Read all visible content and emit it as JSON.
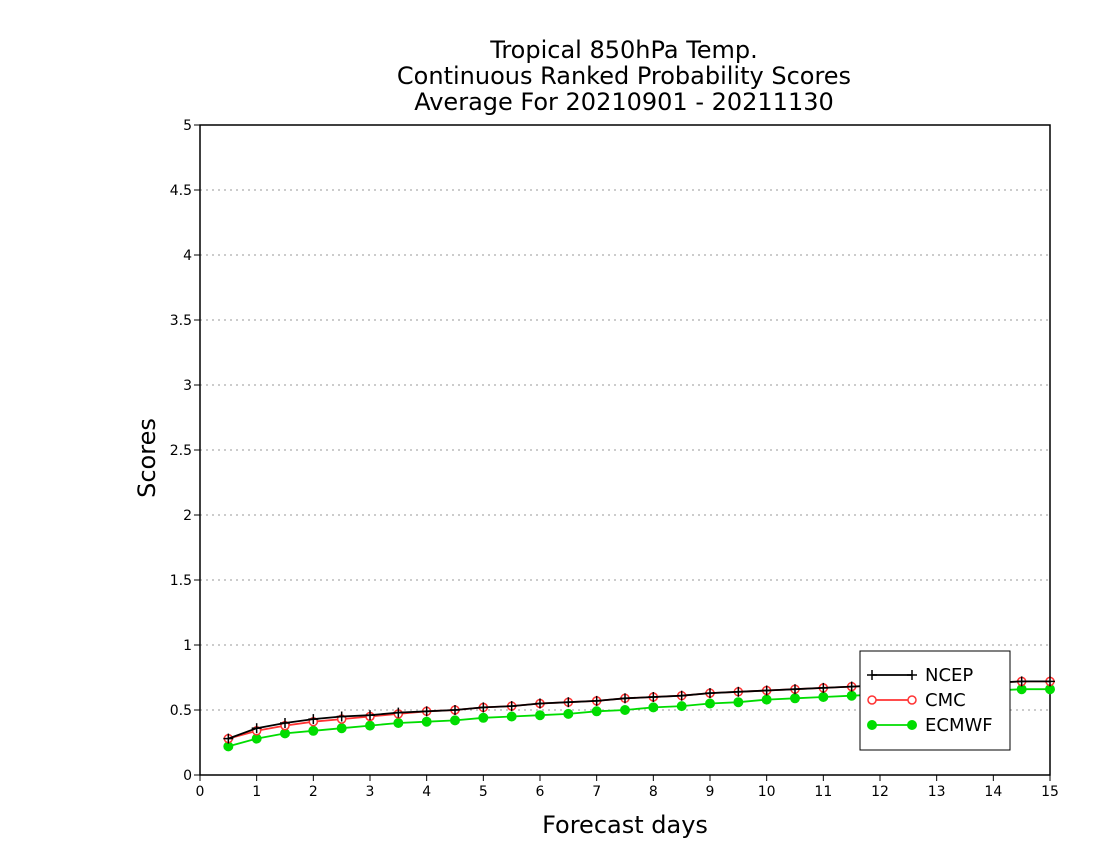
{
  "chart_data": {
    "type": "line",
    "title": [
      "Tropical 850hPa Temp.",
      "Continuous Ranked Probability Scores",
      "Average For 20210901 - 20211130"
    ],
    "xlabel": "Forecast days",
    "ylabel": "Scores",
    "xlim": [
      0,
      15
    ],
    "ylim": [
      0,
      5
    ],
    "x_ticks": [
      "0",
      "1",
      "2",
      "3",
      "4",
      "5",
      "6",
      "7",
      "8",
      "9",
      "10",
      "11",
      "12",
      "13",
      "14",
      "15"
    ],
    "y_ticks": [
      "0",
      "0.5",
      "1",
      "1.5",
      "2",
      "2.5",
      "3",
      "3.5",
      "4",
      "4.5",
      "5"
    ],
    "grid": "horizontal-dotted",
    "legend_position": "bottom-right",
    "x": [
      0.5,
      1,
      1.5,
      2,
      2.5,
      3,
      3.5,
      4,
      4.5,
      5,
      5.5,
      6,
      6.5,
      7,
      7.5,
      8,
      8.5,
      9,
      9.5,
      10,
      10.5,
      11,
      11.5,
      12,
      12.5,
      13,
      13.5,
      14,
      14.5,
      15
    ],
    "series": [
      {
        "name": "NCEP",
        "color": "#000000",
        "marker": "plus",
        "values": [
          0.28,
          0.36,
          0.4,
          0.43,
          0.45,
          0.46,
          0.48,
          0.49,
          0.5,
          0.52,
          0.53,
          0.55,
          0.56,
          0.57,
          0.59,
          0.6,
          0.61,
          0.63,
          0.64,
          0.65,
          0.66,
          0.67,
          0.68,
          0.69,
          0.7,
          0.7,
          0.71,
          0.71,
          0.72,
          0.72
        ]
      },
      {
        "name": "CMC",
        "color": "#ff3333",
        "marker": "open-circle",
        "values": [
          0.28,
          0.34,
          0.38,
          0.41,
          0.43,
          0.45,
          0.47,
          0.49,
          0.5,
          0.52,
          0.53,
          0.55,
          0.56,
          0.57,
          0.59,
          0.6,
          0.61,
          0.63,
          0.64,
          0.65,
          0.66,
          0.67,
          0.68,
          0.69,
          0.7,
          0.7,
          0.71,
          0.71,
          0.72,
          0.72
        ]
      },
      {
        "name": "ECMWF",
        "color": "#00dd00",
        "marker": "filled-circle",
        "values": [
          0.22,
          0.28,
          0.32,
          0.34,
          0.36,
          0.38,
          0.4,
          0.41,
          0.42,
          0.44,
          0.45,
          0.46,
          0.47,
          0.49,
          0.5,
          0.52,
          0.53,
          0.55,
          0.56,
          0.58,
          0.59,
          0.6,
          0.61,
          0.62,
          0.63,
          0.64,
          0.64,
          0.65,
          0.66,
          0.66
        ]
      }
    ]
  }
}
